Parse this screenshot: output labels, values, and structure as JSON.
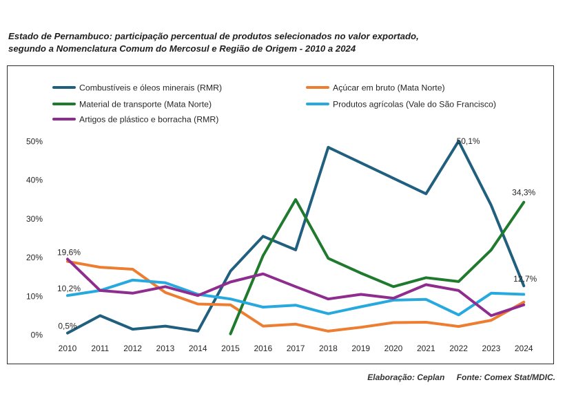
{
  "title_line1": "Estado de Pernambuco: participação percentual de produtos selecionados no valor exportado,",
  "title_line2": "segundo a Nomenclatura Comum do Mercosul e Região de Origem - 2010 a 2024",
  "footer": {
    "credit": "Elaboração: Ceplan",
    "source": "Fonte: Comex Stat/MDIC."
  },
  "chart_data": {
    "type": "line",
    "title": "Estado de Pernambuco: participação percentual de produtos selecionados no valor exportado, segundo a Nomenclatura Comum do Mercosul e Região de Origem - 2010 a 2024",
    "xlabel": "",
    "ylabel": "",
    "ylim": [
      0,
      50
    ],
    "y_ticks": [
      0,
      10,
      20,
      30,
      40,
      50
    ],
    "y_tick_labels": [
      "0%",
      "10%",
      "20%",
      "30%",
      "40%",
      "50%"
    ],
    "grid": false,
    "legend_position": "top",
    "categories": [
      "2010",
      "2011",
      "2012",
      "2013",
      "2014",
      "2015",
      "2016",
      "2017",
      "2018",
      "2019",
      "2020",
      "2021",
      "2022",
      "2023",
      "2024"
    ],
    "series": [
      {
        "name": "Combustíveis e óleos minerais (RMR)",
        "color": "#215f7e",
        "values": [
          0.5,
          5.0,
          1.5,
          2.3,
          1.0,
          16.5,
          25.5,
          22.0,
          48.5,
          44.5,
          40.5,
          36.5,
          50.1,
          33.5,
          12.7
        ]
      },
      {
        "name": "Açúcar em bruto (Mata Norte)",
        "color": "#ed7d31",
        "values": [
          19.0,
          17.5,
          17.0,
          11.0,
          8.0,
          7.8,
          2.3,
          2.8,
          1.0,
          2.0,
          3.2,
          3.3,
          2.2,
          3.8,
          8.5
        ]
      },
      {
        "name": "Material de transporte (Mata Norte)",
        "color": "#1f7a2e",
        "values": [
          null,
          null,
          null,
          null,
          null,
          0.3,
          20.5,
          35.0,
          19.8,
          16.0,
          12.5,
          14.8,
          13.8,
          22.0,
          34.3
        ]
      },
      {
        "name": "Produtos agrícolas (Vale do São Francisco)",
        "color": "#27a9df",
        "values": [
          10.2,
          11.5,
          14.2,
          13.5,
          10.5,
          9.3,
          7.2,
          7.7,
          5.5,
          7.3,
          9.0,
          9.2,
          5.2,
          10.8,
          10.5
        ]
      },
      {
        "name": "Artigos de plástico e borracha (RMR)",
        "color": "#8e2d8e",
        "values": [
          19.6,
          11.5,
          10.8,
          12.5,
          10.2,
          13.7,
          15.8,
          12.5,
          9.3,
          10.5,
          9.5,
          13.0,
          11.5,
          5.0,
          7.8
        ]
      }
    ],
    "annotations": [
      {
        "text": "0,5%",
        "series": 0,
        "index": 0
      },
      {
        "text": "19,6%",
        "series": 4,
        "index": 0
      },
      {
        "text": "10,2%",
        "series": 3,
        "index": 0
      },
      {
        "text": "50,1%",
        "series": 0,
        "index": 12
      },
      {
        "text": "34,3%",
        "series": 2,
        "index": 14
      },
      {
        "text": "12,7%",
        "series": 0,
        "index": 14
      }
    ]
  }
}
